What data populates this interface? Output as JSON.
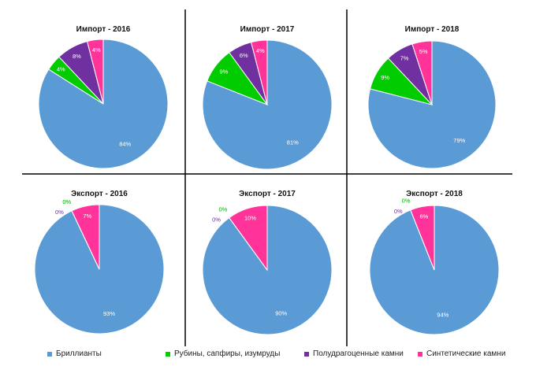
{
  "chart_data": [
    {
      "type": "pie",
      "title": "Импорт - 2016",
      "categories": [
        "Бриллианты",
        "Рубины, сапфиры, изумруды",
        "Полудрагоценные камни",
        "Синтетические камни"
      ],
      "values": [
        84,
        4,
        8,
        4
      ],
      "labels": [
        "84%",
        "4%",
        "8%",
        "4%"
      ]
    },
    {
      "type": "pie",
      "title": "Импорт - 2017",
      "categories": [
        "Бриллианты",
        "Рубины, сапфиры, изумруды",
        "Полудрагоценные камни",
        "Синтетические камни"
      ],
      "values": [
        81,
        9,
        6,
        4
      ],
      "labels": [
        "81%",
        "9%",
        "6%",
        "4%"
      ]
    },
    {
      "type": "pie",
      "title": "Импорт - 2018",
      "categories": [
        "Бриллианты",
        "Рубины, сапфиры, изумруды",
        "Полудрагоценные камни",
        "Синтетические камни"
      ],
      "values": [
        79,
        9,
        7,
        5
      ],
      "labels": [
        "79%",
        "9%",
        "7%",
        "5%"
      ]
    },
    {
      "type": "pie",
      "title": "Экспорт - 2016",
      "categories": [
        "Бриллианты",
        "Рубины, сапфиры, изумруды",
        "Полудрагоценные камни",
        "Синтетические камни"
      ],
      "values": [
        93,
        0,
        0,
        7
      ],
      "labels": [
        "93%",
        "0%",
        "0%",
        "7%"
      ]
    },
    {
      "type": "pie",
      "title": "Экспорт - 2017",
      "categories": [
        "Бриллианты",
        "Рубины, сапфиры, изумруды",
        "Полудрагоценные камни",
        "Синтетические камни"
      ],
      "values": [
        90,
        0,
        0,
        10
      ],
      "labels": [
        "90%",
        "0%",
        "0%",
        "10%"
      ]
    },
    {
      "type": "pie",
      "title": "Экспорт - 2018",
      "categories": [
        "Бриллианты",
        "Рубины, сапфиры, изумруды",
        "Полудрагоценные камни",
        "Синтетические камни"
      ],
      "values": [
        94,
        0,
        0,
        6
      ],
      "labels": [
        "94%",
        "0%",
        "0%",
        "6%"
      ]
    }
  ],
  "legend": [
    {
      "label": "Бриллианты",
      "color": "#5b9bd5"
    },
    {
      "label": "Рубины, сапфиры, изумруды",
      "color": "#00cc00"
    },
    {
      "label": "Полудрагоценные камни",
      "color": "#7030a0"
    },
    {
      "label": "Синтетические камни",
      "color": "#ff3399"
    }
  ],
  "colors": [
    "#5b9bd5",
    "#00cc00",
    "#7030a0",
    "#ff3399"
  ],
  "legend_placement": "bottom"
}
